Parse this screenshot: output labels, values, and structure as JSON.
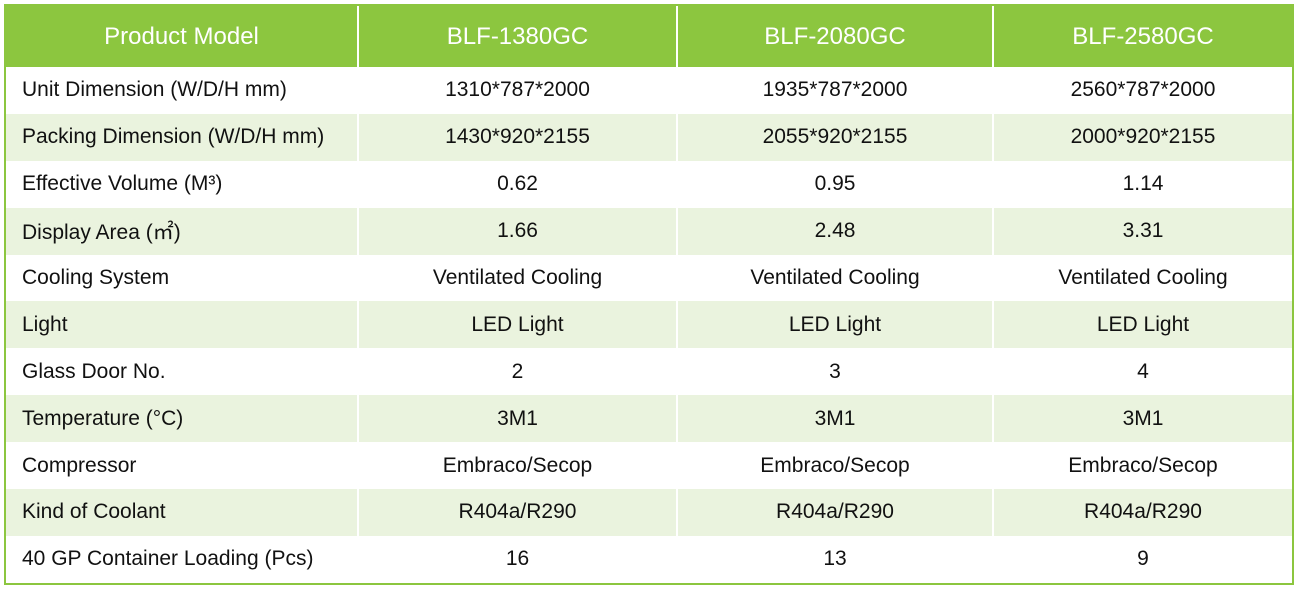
{
  "table": {
    "header": [
      "Product Model",
      "BLF-1380GC",
      "BLF-2080GC",
      "BLF-2580GC"
    ],
    "rows": [
      [
        "Unit Dimension (W/D/H mm)",
        "1310*787*2000",
        "1935*787*2000",
        "2560*787*2000"
      ],
      [
        "Packing Dimension (W/D/H mm)",
        "1430*920*2155",
        "2055*920*2155",
        "2000*920*2155"
      ],
      [
        "Effective Volume (M³)",
        "0.62",
        "0.95",
        "1.14"
      ],
      [
        "Display Area (㎡)",
        "1.66",
        "2.48",
        "3.31"
      ],
      [
        "Cooling System",
        "Ventilated Cooling",
        "Ventilated Cooling",
        "Ventilated Cooling"
      ],
      [
        "Light",
        "LED Light",
        "LED Light",
        "LED Light"
      ],
      [
        "Glass Door No.",
        "2",
        "3",
        "4"
      ],
      [
        "Temperature (°C)",
        "3M1",
        "3M1",
        "3M1"
      ],
      [
        "Compressor",
        "Embraco/Secop",
        "Embraco/Secop",
        "Embraco/Secop"
      ],
      [
        "Kind of Coolant",
        "R404a/R290",
        "R404a/R290",
        "R404a/R290"
      ],
      [
        "40 GP Container Loading (Pcs)",
        "16",
        "13",
        "9"
      ]
    ]
  }
}
